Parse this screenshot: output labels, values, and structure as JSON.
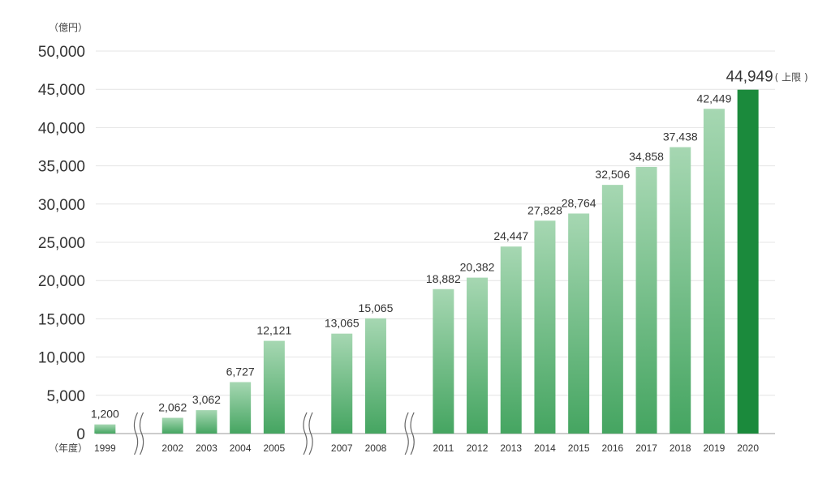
{
  "chart_data": {
    "type": "bar",
    "title": "",
    "ylabel": "（億円）",
    "xlabel": "（年度）",
    "ylim": [
      0,
      50000
    ],
    "yticks": [
      0,
      5000,
      10000,
      15000,
      20000,
      25000,
      30000,
      35000,
      40000,
      45000,
      50000
    ],
    "ytick_labels": [
      "0",
      "5,000",
      "10,000",
      "15,000",
      "20,000",
      "25,000",
      "30,000",
      "35,000",
      "40,000",
      "45,000",
      "50,000"
    ],
    "categories": [
      "1999",
      "2002",
      "2003",
      "2004",
      "2005",
      "2007",
      "2008",
      "2011",
      "2012",
      "2013",
      "2014",
      "2015",
      "2016",
      "2017",
      "2018",
      "2019",
      "2020"
    ],
    "values": [
      1200,
      2062,
      3062,
      6727,
      12121,
      13065,
      15065,
      18882,
      20382,
      24447,
      27828,
      28764,
      32506,
      34858,
      37438,
      42449,
      44949
    ],
    "value_labels": [
      "1,200",
      "2,062",
      "3,062",
      "6,727",
      "12,121",
      "13,065",
      "15,065",
      "18,882",
      "20,382",
      "24,447",
      "27,828",
      "28,764",
      "32,506",
      "34,858",
      "37,438",
      "42,449",
      "44,949"
    ],
    "last_annotation": "( 上限 )",
    "axis_breaks_after": [
      "1999",
      "2005",
      "2008"
    ],
    "grid": true,
    "colors": {
      "bar_top": "#a6d7b2",
      "bar_bottom": "#45a561",
      "highlight": "#1b8a3c",
      "grid": "#e4e4e4"
    }
  }
}
